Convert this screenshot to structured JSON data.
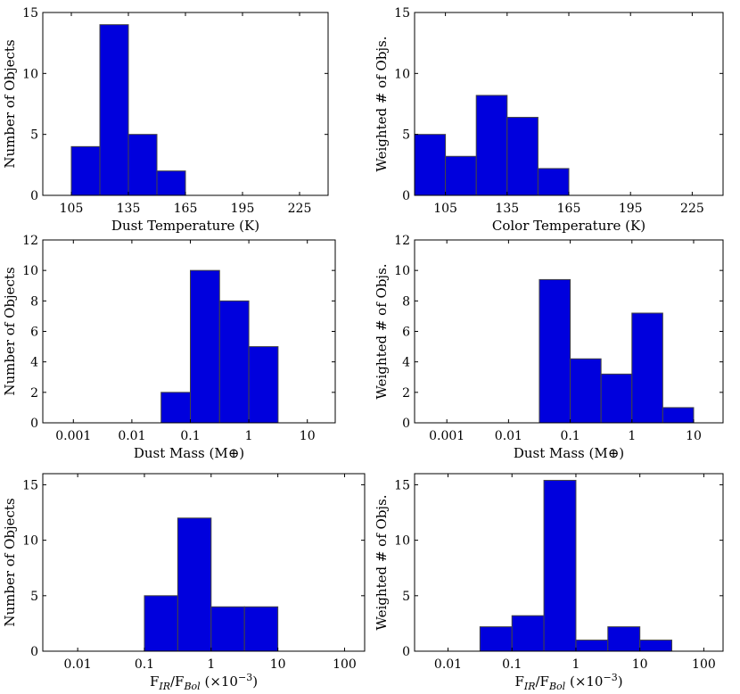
{
  "chart_data": [
    {
      "type": "bar",
      "id": "dust-temperature-count",
      "scale": "linear",
      "xlim": [
        90,
        240
      ],
      "ylim": [
        0,
        15
      ],
      "xticks": [
        105,
        135,
        165,
        195,
        225
      ],
      "xtick_labels": [
        "105",
        "135",
        "165",
        "195",
        "225"
      ],
      "yticks": [
        0,
        5,
        10,
        15
      ],
      "ytick_labels": [
        "0",
        "5",
        "10",
        "15"
      ],
      "bins": [
        {
          "x0": 105,
          "x1": 120,
          "value": 4
        },
        {
          "x0": 120,
          "x1": 135,
          "value": 14
        },
        {
          "x0": 135,
          "x1": 150,
          "value": 5
        },
        {
          "x0": 150,
          "x1": 165,
          "value": 2
        }
      ],
      "xlabel": "Dust Temperature (K)",
      "ylabel": "Number of Objects"
    },
    {
      "type": "bar",
      "id": "color-temperature-weighted",
      "scale": "linear",
      "xlim": [
        90,
        240
      ],
      "ylim": [
        0,
        15
      ],
      "xticks": [
        105,
        135,
        165,
        195,
        225
      ],
      "xtick_labels": [
        "105",
        "135",
        "165",
        "195",
        "225"
      ],
      "yticks": [
        0,
        5,
        10,
        15
      ],
      "ytick_labels": [
        "0",
        "5",
        "10",
        "15"
      ],
      "bins": [
        {
          "x0": 90,
          "x1": 105,
          "value": 5
        },
        {
          "x0": 105,
          "x1": 120,
          "value": 3.2
        },
        {
          "x0": 120,
          "x1": 135,
          "value": 8.2
        },
        {
          "x0": 135,
          "x1": 150,
          "value": 6.4
        },
        {
          "x0": 150,
          "x1": 165,
          "value": 2.2
        }
      ],
      "xlabel": "Color Temperature (K)",
      "ylabel": "Weighted # of Objs."
    },
    {
      "type": "bar",
      "id": "dust-mass-count",
      "scale": "log",
      "xlim": [
        0.0003,
        30
      ],
      "ylim": [
        0,
        12
      ],
      "xticks": [
        0.001,
        0.01,
        0.1,
        1,
        10
      ],
      "xtick_labels": [
        "0.001",
        "0.01",
        "0.1",
        "1",
        "10"
      ],
      "yticks": [
        0,
        2,
        4,
        6,
        8,
        10,
        12
      ],
      "ytick_labels": [
        "0",
        "2",
        "4",
        "6",
        "8",
        "10",
        "12"
      ],
      "bins": [
        {
          "x0": 0.0316,
          "x1": 0.1,
          "value": 2
        },
        {
          "x0": 0.1,
          "x1": 0.316,
          "value": 10
        },
        {
          "x0": 0.316,
          "x1": 1,
          "value": 8
        },
        {
          "x0": 1,
          "x1": 3.16,
          "value": 5
        }
      ],
      "xlabel": "Dust Mass (M⊕)",
      "ylabel": "Number of Objects"
    },
    {
      "type": "bar",
      "id": "dust-mass-weighted",
      "scale": "log",
      "xlim": [
        0.0003,
        30
      ],
      "ylim": [
        0,
        12
      ],
      "xticks": [
        0.001,
        0.01,
        0.1,
        1,
        10
      ],
      "xtick_labels": [
        "0.001",
        "0.01",
        "0.1",
        "1",
        "10"
      ],
      "yticks": [
        0,
        2,
        4,
        6,
        8,
        10,
        12
      ],
      "ytick_labels": [
        "0",
        "2",
        "4",
        "6",
        "8",
        "10",
        "12"
      ],
      "bins": [
        {
          "x0": 0.0316,
          "x1": 0.1,
          "value": 9.4
        },
        {
          "x0": 0.1,
          "x1": 0.316,
          "value": 4.2
        },
        {
          "x0": 0.316,
          "x1": 1,
          "value": 3.2
        },
        {
          "x0": 1,
          "x1": 3.16,
          "value": 7.2
        },
        {
          "x0": 3.16,
          "x1": 10,
          "value": 1
        }
      ],
      "xlabel": "Dust Mass (M⊕)",
      "ylabel": "Weighted # of Objs."
    },
    {
      "type": "bar",
      "id": "fir-fbol-count",
      "scale": "log",
      "xlim": [
        0.003,
        200
      ],
      "ylim": [
        0,
        16
      ],
      "xticks": [
        0.01,
        0.1,
        1,
        10,
        100
      ],
      "xtick_labels": [
        "0.01",
        "0.1",
        "1",
        "10",
        "100"
      ],
      "yticks": [
        0,
        5,
        10,
        15
      ],
      "ytick_labels": [
        "0",
        "5",
        "10",
        "15"
      ],
      "bins": [
        {
          "x0": 0.1,
          "x1": 0.316,
          "value": 5
        },
        {
          "x0": 0.316,
          "x1": 1,
          "value": 12
        },
        {
          "x0": 1,
          "x1": 3.16,
          "value": 4
        },
        {
          "x0": 3.16,
          "x1": 10,
          "value": 4
        }
      ],
      "xlabel": "F_IR/F_Bol (×10^-3)",
      "ylabel": "Number of Objects"
    },
    {
      "type": "bar",
      "id": "fir-fbol-weighted",
      "scale": "log",
      "xlim": [
        0.003,
        200
      ],
      "ylim": [
        0,
        16
      ],
      "xticks": [
        0.01,
        0.1,
        1,
        10,
        100
      ],
      "xtick_labels": [
        "0.01",
        "0.1",
        "1",
        "10",
        "100"
      ],
      "yticks": [
        0,
        5,
        10,
        15
      ],
      "ytick_labels": [
        "0",
        "5",
        "10",
        "15"
      ],
      "bins": [
        {
          "x0": 0.0316,
          "x1": 0.1,
          "value": 2.2
        },
        {
          "x0": 0.1,
          "x1": 0.316,
          "value": 3.2
        },
        {
          "x0": 0.316,
          "x1": 1,
          "value": 15.4
        },
        {
          "x0": 1,
          "x1": 3.16,
          "value": 1
        },
        {
          "x0": 3.16,
          "x1": 10,
          "value": 2.2
        },
        {
          "x0": 10,
          "x1": 31.6,
          "value": 1
        }
      ],
      "xlabel": "F_IR/F_Bol (×10^-3)",
      "ylabel": "Weighted # of Objs."
    }
  ],
  "labels": {
    "fir_fbol": {
      "F1": "F",
      "IR": "IR",
      "slash": "/F",
      "Bol": "Bol",
      "factor_open": " (×10",
      "factor_exp": "−3",
      "factor_close": ")"
    }
  },
  "colors": {
    "bar_fill": "#0000dd",
    "bar_edge": "#444444",
    "axis": "#000000"
  }
}
